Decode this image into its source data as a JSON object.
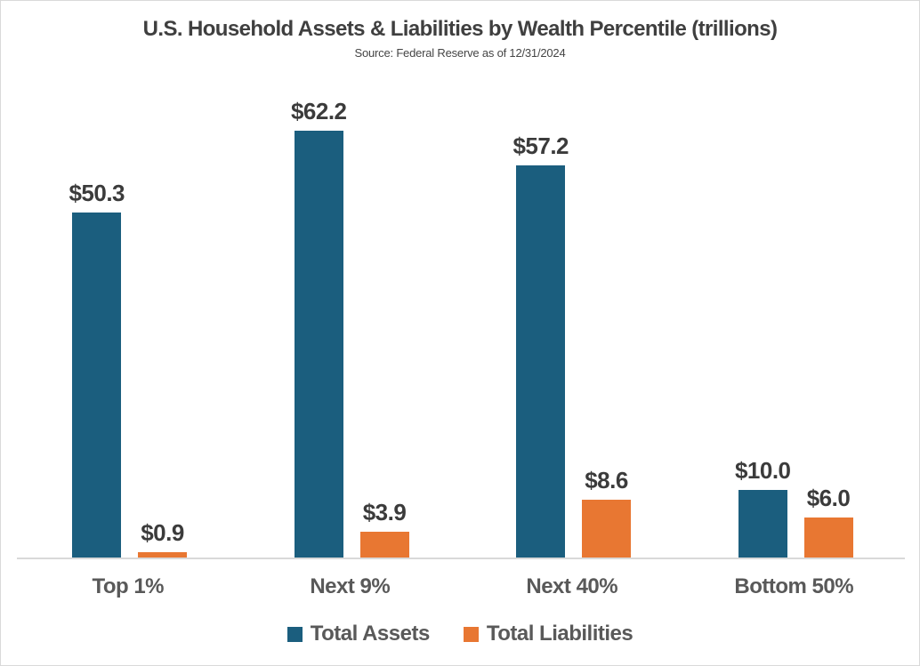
{
  "chart_data": {
    "type": "bar",
    "title": "U.S. Household Assets & Liabilities by Wealth Percentile (trillions)",
    "subtitle": "Source: Federal Reserve as of 12/31/2024",
    "categories": [
      "Top 1%",
      "Next 9%",
      "Next 40%",
      "Bottom 50%"
    ],
    "series": [
      {
        "name": "Total Assets",
        "color": "#1B5E7E",
        "values": [
          50.3,
          62.2,
          57.2,
          10.0
        ],
        "data_labels": [
          "$50.3",
          "$62.2",
          "$57.2",
          "$10.0"
        ]
      },
      {
        "name": "Total Liabilities",
        "color": "#E87732",
        "values": [
          0.9,
          3.9,
          8.6,
          6.0
        ],
        "data_labels": [
          "$0.9",
          "$3.9",
          "$8.6",
          "$6.0"
        ]
      }
    ],
    "xlabel": "",
    "ylabel": "",
    "ylim": [
      0,
      65
    ],
    "grid": false,
    "y_axis_visible": false,
    "legend_position": "bottom",
    "axis_line_color": "#D9D9D9",
    "value_label_color": "#3B3B3B",
    "category_label_color": "#595959",
    "background_color": "#FFFFFF"
  }
}
